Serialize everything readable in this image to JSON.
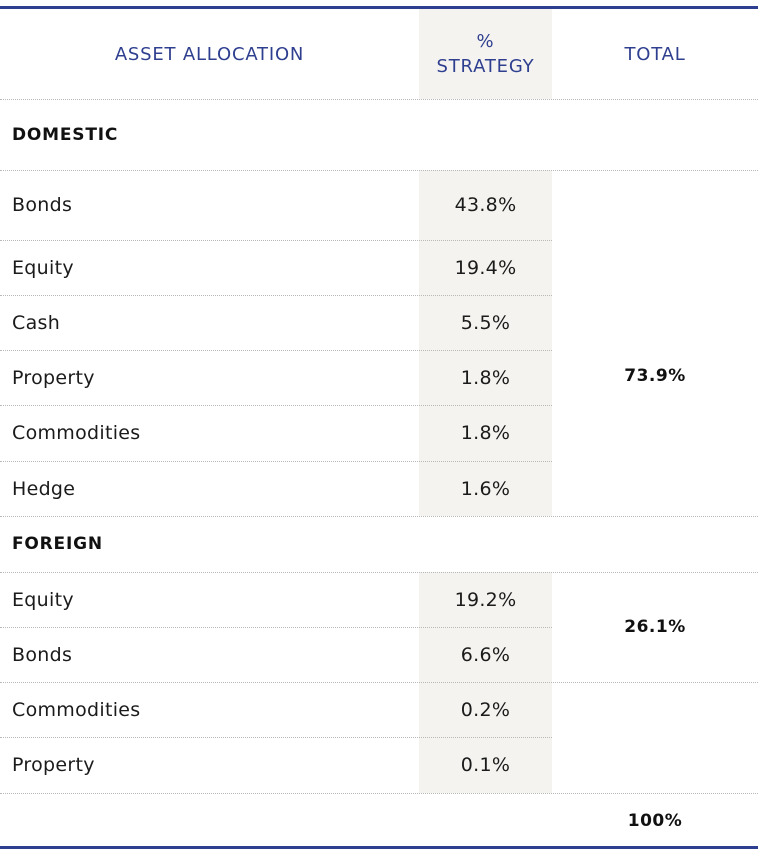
{
  "header": {
    "asset_allocation": "ASSET ALLOCATION",
    "strategy_line1": "%",
    "strategy_line2": "STRATEGY",
    "total": "TOTAL"
  },
  "domestic": {
    "title": "DOMESTIC",
    "rows": [
      {
        "label": "Bonds",
        "pct": "43.8%"
      },
      {
        "label": "Equity",
        "pct": "19.4%"
      },
      {
        "label": "Cash",
        "pct": "5.5%"
      },
      {
        "label": "Property",
        "pct": "1.8%"
      },
      {
        "label": "Commodities",
        "pct": "1.8%"
      },
      {
        "label": "Hedge",
        "pct": "1.6%"
      }
    ],
    "total": "73.9%"
  },
  "foreign": {
    "title": "FOREIGN",
    "rows": [
      {
        "label": "Equity",
        "pct": "19.2%"
      },
      {
        "label": "Bonds",
        "pct": "6.6%"
      },
      {
        "label": "Commodities",
        "pct": "0.2%"
      },
      {
        "label": "Property",
        "pct": "0.1%"
      }
    ],
    "total": "26.1%"
  },
  "grand_total": "100%",
  "colors": {
    "accent": "#2f3f8f",
    "shade": "#f4f3ef"
  }
}
